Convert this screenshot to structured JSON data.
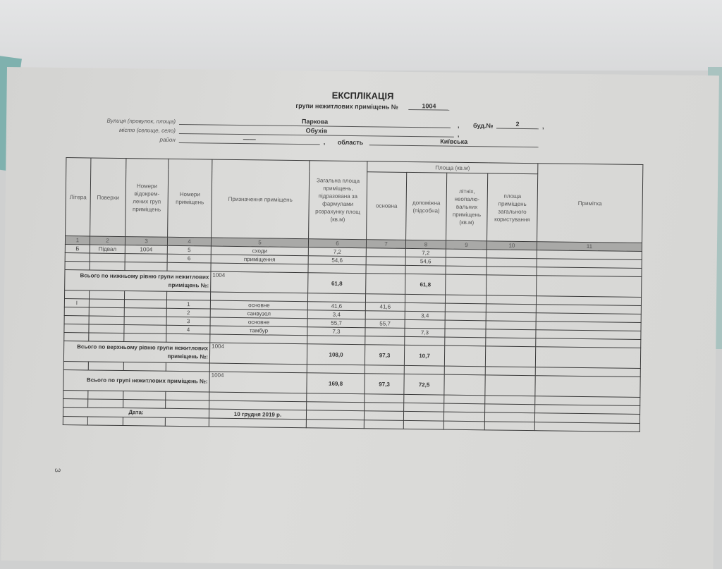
{
  "title": "ЕКСПЛІКАЦІЯ",
  "subtitle": "групи нежитлових приміщень №",
  "group_number": "1004",
  "fields": {
    "street_label": "Вулиця (провулок, площа)",
    "street": "Паркова",
    "building_label": "буд.№",
    "building": "2",
    "city_label": "місто (селище, село)",
    "city": "Обухів",
    "district_label": "район",
    "district": "——",
    "region_label": "область",
    "region": "Київська"
  },
  "table": {
    "headers": [
      "Літера",
      "Поверхи",
      "Номери відокрем-лених груп приміщень",
      "Номери приміщень",
      "Призначення приміщень",
      "Загальна площа приміщень, підразована за фармулами розрахунку площ (кв.м)",
      "основна",
      "допоміжна (підсобна)",
      "літніх, неопалю-вальних приміщень (кв.м)",
      "площа приміщень загального користування",
      "Примітка"
    ],
    "area_group_header": "Площа (кв.м)",
    "column_numbers": [
      "1",
      "2",
      "3",
      "4",
      "5",
      "6",
      "7",
      "8",
      "9",
      "10",
      "11"
    ],
    "rows": [
      {
        "cells": [
          "Б",
          "Підвал",
          "1004",
          "5",
          "сходи",
          "7,2",
          "",
          "7,2",
          "",
          "",
          ""
        ]
      },
      {
        "cells": [
          "",
          "",
          "",
          "6",
          "приміщення",
          "54,6",
          "",
          "54,6",
          "",
          "",
          ""
        ]
      },
      {
        "cells": [
          "",
          "",
          "",
          "",
          "",
          "",
          "",
          "",
          "",
          "",
          ""
        ]
      },
      {
        "label": "Всього по нижньому рівню групи нежитлових приміщень №:",
        "cells": [
          "1004",
          "61,8",
          "",
          "61,8",
          "",
          "",
          ""
        ],
        "bold": true
      },
      {
        "cells": [
          "",
          "",
          "",
          "",
          "",
          "",
          "",
          "",
          "",
          "",
          ""
        ]
      },
      {
        "cells": [
          "І",
          "",
          "",
          "1",
          "основне",
          "41,6",
          "41,6",
          "",
          "",
          "",
          ""
        ]
      },
      {
        "cells": [
          "",
          "",
          "",
          "2",
          "санвузол",
          "3,4",
          "",
          "3,4",
          "",
          "",
          ""
        ]
      },
      {
        "cells": [
          "",
          "",
          "",
          "3",
          "основне",
          "55,7",
          "55,7",
          "",
          "",
          "",
          ""
        ]
      },
      {
        "cells": [
          "",
          "",
          "",
          "4",
          "тамбур",
          "7,3",
          "",
          "7,3",
          "",
          "",
          ""
        ]
      },
      {
        "cells": [
          "",
          "",
          "",
          "",
          "",
          "",
          "",
          "",
          "",
          "",
          ""
        ]
      },
      {
        "label": "Всього по верхньому рівню групи нежитлових приміщень №:",
        "cells": [
          "1004",
          "108,0",
          "97,3",
          "10,7",
          "",
          "",
          ""
        ],
        "bold": true
      },
      {
        "cells": [
          "",
          "",
          "",
          "",
          "",
          "",
          "",
          "",
          "",
          "",
          ""
        ]
      },
      {
        "label": "Всього по групі нежитлових приміщень №:",
        "cells": [
          "1004",
          "169,8",
          "97,3",
          "72,5",
          "",
          "",
          ""
        ],
        "bold": true
      },
      {
        "cells": [
          "",
          "",
          "",
          "",
          "",
          "",
          "",
          "",
          "",
          "",
          ""
        ]
      },
      {
        "cells": [
          "",
          "",
          "",
          "",
          "",
          "",
          "",
          "",
          "",
          "",
          ""
        ]
      },
      {
        "label": "Дата:",
        "cells": [
          "10 грудня 2019 р.",
          "",
          "",
          "",
          "",
          "",
          ""
        ],
        "date": true
      },
      {
        "cells": [
          "",
          "",
          "",
          "",
          "",
          "",
          "",
          "",
          "",
          "",
          ""
        ]
      }
    ]
  },
  "page_mark": "3"
}
